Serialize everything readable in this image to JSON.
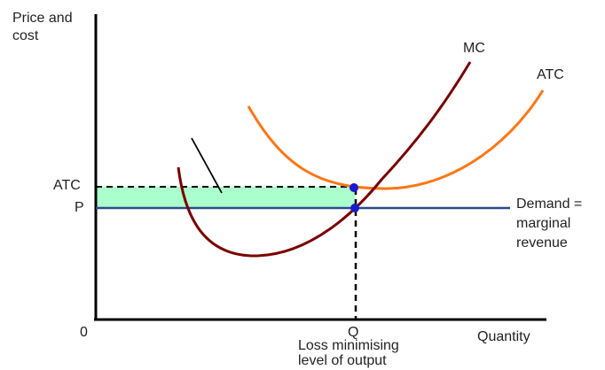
{
  "labels": {
    "y_axis": "Price and\ncost",
    "x_axis": "Quantity",
    "origin": "0",
    "atc_level": "ATC",
    "p_level": "P",
    "q_level": "Q",
    "q_note": "Loss minimising\nlevel of output",
    "mc_curve": "MC",
    "atc_curve": "ATC",
    "demand_curve": "Demand =\nmarginal\nrevenue"
  },
  "colors": {
    "axes": "#000000",
    "mc": "#7a0000",
    "atc": "#ff7514",
    "demand": "#2b4a8c",
    "loss_area": "#aaffcc",
    "points": "#1a1acc"
  }
}
